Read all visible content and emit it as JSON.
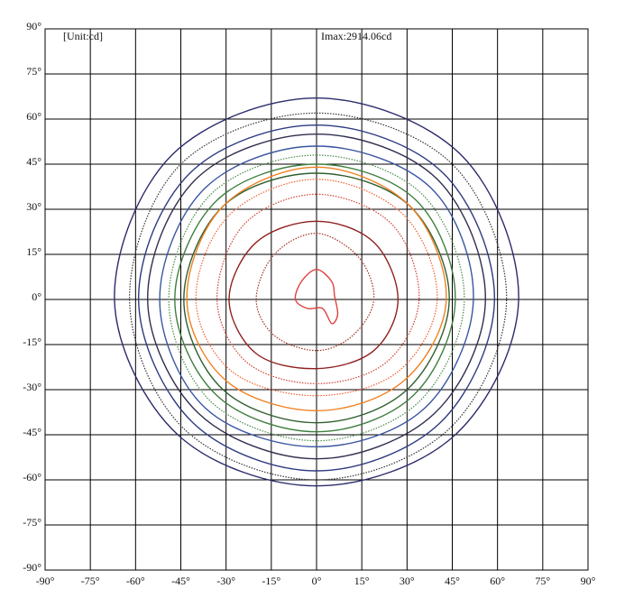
{
  "chart_data": {
    "type": "contour",
    "unit_label": "[Unit:cd]",
    "imax_label": "Imax:2914.06cd",
    "imax_color": "#e01010",
    "xlim": [
      -90,
      90
    ],
    "ylim": [
      -90,
      90
    ],
    "xticks": [
      {
        "value": -90,
        "label": "-90°"
      },
      {
        "value": -75,
        "label": "-75°"
      },
      {
        "value": -60,
        "label": "-60°"
      },
      {
        "value": -45,
        "label": "-45°"
      },
      {
        "value": -30,
        "label": "-30°"
      },
      {
        "value": -15,
        "label": "-15°"
      },
      {
        "value": 0,
        "label": "0°"
      },
      {
        "value": 15,
        "label": "15°"
      },
      {
        "value": 30,
        "label": "30°"
      },
      {
        "value": 45,
        "label": "45°"
      },
      {
        "value": 60,
        "label": "60°"
      },
      {
        "value": 75,
        "label": "75°"
      },
      {
        "value": 90,
        "label": "90°"
      }
    ],
    "yticks": [
      {
        "value": 90,
        "label": "90°"
      },
      {
        "value": 75,
        "label": "75°"
      },
      {
        "value": 60,
        "label": "60°"
      },
      {
        "value": 45,
        "label": "45°"
      },
      {
        "value": 30,
        "label": "30°"
      },
      {
        "value": 15,
        "label": "15°"
      },
      {
        "value": 0,
        "label": "0°"
      },
      {
        "value": -15,
        "label": "-15°"
      },
      {
        "value": -30,
        "label": "-30°"
      },
      {
        "value": -45,
        "label": "-45°"
      },
      {
        "value": -60,
        "label": "-60°"
      },
      {
        "value": -75,
        "label": "-75°"
      },
      {
        "value": -90,
        "label": "-90°"
      }
    ],
    "grid": true,
    "series": [
      {
        "color": "#2b2b6b",
        "style": "solid",
        "x": [
          0,
          48,
          67,
          46,
          0,
          -46,
          -67,
          -48
        ],
        "y": [
          67,
          48,
          0,
          -45,
          -62,
          -45,
          0,
          48
        ]
      },
      {
        "color": "#333333",
        "style": "dotted",
        "x": [
          0,
          45,
          63,
          44,
          0,
          -44,
          -62,
          -45
        ],
        "y": [
          62,
          45,
          0,
          -43,
          -60,
          -43,
          0,
          45
        ]
      },
      {
        "color": "#2e3a80",
        "style": "solid",
        "x": [
          0,
          42,
          59,
          41,
          0,
          -41,
          -59,
          -42
        ],
        "y": [
          58,
          42,
          0,
          -41,
          -57,
          -41,
          0,
          42
        ]
      },
      {
        "color": "#2f2f4f",
        "style": "solid",
        "x": [
          0,
          40,
          56,
          39,
          0,
          -39,
          -56,
          -40
        ],
        "y": [
          55,
          40,
          0,
          -38,
          -53,
          -38,
          0,
          40
        ]
      },
      {
        "color": "#3a56a0",
        "style": "solid",
        "x": [
          0,
          38,
          52,
          36,
          0,
          -37,
          -52,
          -37
        ],
        "y": [
          51,
          37,
          0,
          -36,
          -49,
          -36,
          0,
          37
        ]
      },
      {
        "color": "#4a8a4a",
        "style": "dotted",
        "x": [
          0,
          35,
          49,
          34,
          0,
          -35,
          -49,
          -35
        ],
        "y": [
          48,
          35,
          0,
          -34,
          -47,
          -34,
          0,
          35
        ]
      },
      {
        "color": "#3f7f3f",
        "style": "solid",
        "x": [
          0,
          33,
          46,
          32,
          0,
          -33,
          -47,
          -33
        ],
        "y": [
          45,
          33,
          0,
          -32,
          -44,
          -32,
          0,
          33
        ]
      },
      {
        "color": "#2f5f2f",
        "style": "solid",
        "x": [
          0,
          31,
          44,
          30,
          0,
          -31,
          -44,
          -31
        ],
        "y": [
          42,
          31,
          0,
          -30,
          -41,
          -30,
          0,
          31
        ]
      },
      {
        "color": "#f08020",
        "style": "solid",
        "x": [
          0,
          31,
          43,
          29,
          0,
          -30,
          -43,
          -31
        ],
        "y": [
          44,
          31,
          0,
          -27,
          -37,
          -27,
          0,
          31
        ]
      },
      {
        "color": "#f06030",
        "style": "dotted",
        "x": [
          0,
          29,
          40,
          27,
          0,
          -28,
          -40,
          -29
        ],
        "y": [
          40,
          28,
          0,
          -24,
          -32,
          -24,
          0,
          28
        ]
      },
      {
        "color": "#d04030",
        "style": "dotted",
        "x": [
          0,
          25,
          34,
          23,
          0,
          -23,
          -33,
          -24
        ],
        "y": [
          35,
          25,
          0,
          -21,
          -28,
          -21,
          0,
          25
        ]
      },
      {
        "color": "#902020",
        "style": "solid",
        "x": [
          0,
          19,
          27,
          19,
          0,
          -20,
          -29,
          -20
        ],
        "y": [
          26,
          19,
          0,
          -17,
          -23,
          -18,
          0,
          19
        ]
      },
      {
        "color": "#a03020",
        "style": "dotted",
        "x": [
          0,
          14,
          19,
          12,
          0,
          -14,
          -20,
          -14
        ],
        "y": [
          22,
          14,
          0,
          -12,
          -17,
          -12,
          0,
          15
        ]
      },
      {
        "color": "#e04040",
        "style": "solid",
        "x": [
          0,
          5,
          6,
          7,
          5,
          2,
          -3,
          -7,
          -5
        ],
        "y": [
          10,
          6,
          1,
          -5,
          -8,
          -3,
          -3,
          0,
          6
        ]
      }
    ]
  }
}
